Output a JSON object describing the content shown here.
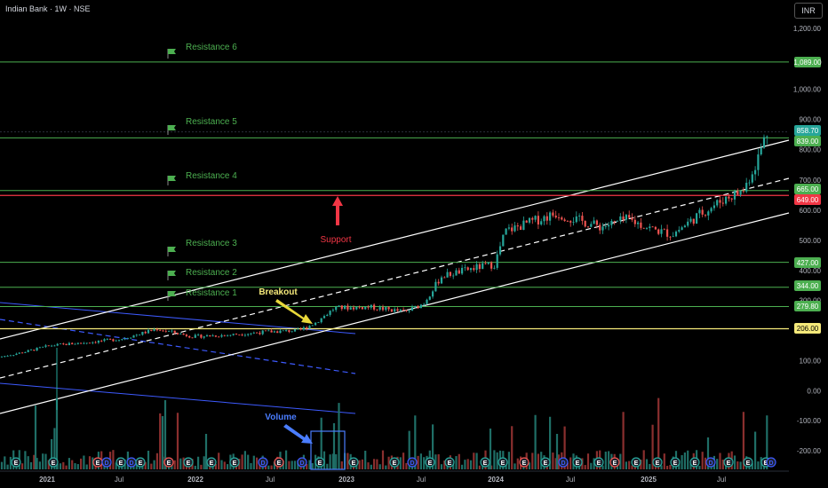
{
  "header": {
    "title": "Indian Bank · 1W · NSE",
    "currency": "INR"
  },
  "chart_data": {
    "type": "candlestick",
    "title": "Indian Bank · 1W · NSE",
    "y_ticks": [
      -200,
      -100,
      0,
      100,
      200,
      300,
      400,
      500,
      600,
      700,
      800,
      900,
      1000,
      1200
    ],
    "x_ticks": [
      "2021",
      "Jul",
      "2022",
      "Jul",
      "2023",
      "Jul",
      "2024",
      "Jul",
      "2025",
      "Jul"
    ],
    "price_labels": [
      {
        "text": "1,089.00",
        "value": 1089,
        "color": "#4caf50"
      },
      {
        "text": "858.70",
        "value": 858.7,
        "color": "#26a69a"
      },
      {
        "text": "839.00",
        "value": 839,
        "color": "#4caf50"
      },
      {
        "text": "665.00",
        "value": 665,
        "color": "#4caf50"
      },
      {
        "text": "649.00",
        "value": 649,
        "color": "#f23645"
      },
      {
        "text": "427.00",
        "value": 427,
        "color": "#4caf50"
      },
      {
        "text": "344.00",
        "value": 344,
        "color": "#4caf50"
      },
      {
        "text": "279.80",
        "value": 279.8,
        "color": "#4caf50"
      },
      {
        "text": "206.00",
        "value": 206,
        "color": "#f5e97a"
      }
    ],
    "levels": [
      {
        "name": "Resistance 6",
        "value": 1089
      },
      {
        "name": "Resistance 5",
        "value": 839
      },
      {
        "name": "Resistance 4",
        "value": 665
      },
      {
        "name": "Resistance 3",
        "value": 427
      },
      {
        "name": "Resistance 2",
        "value": 344
      },
      {
        "name": "Resistance 1",
        "value": 279.8
      }
    ],
    "annotations": {
      "support": "Support",
      "breakout": "Breakout",
      "volume": "Volume"
    },
    "colors": {
      "up": "#26a69a",
      "down": "#ef5350",
      "level": "#4caf50",
      "support": "#f23645",
      "breakout_line": "#f5e97a",
      "channel": "#ffffff",
      "blue_channel": "#3d5afe"
    }
  }
}
